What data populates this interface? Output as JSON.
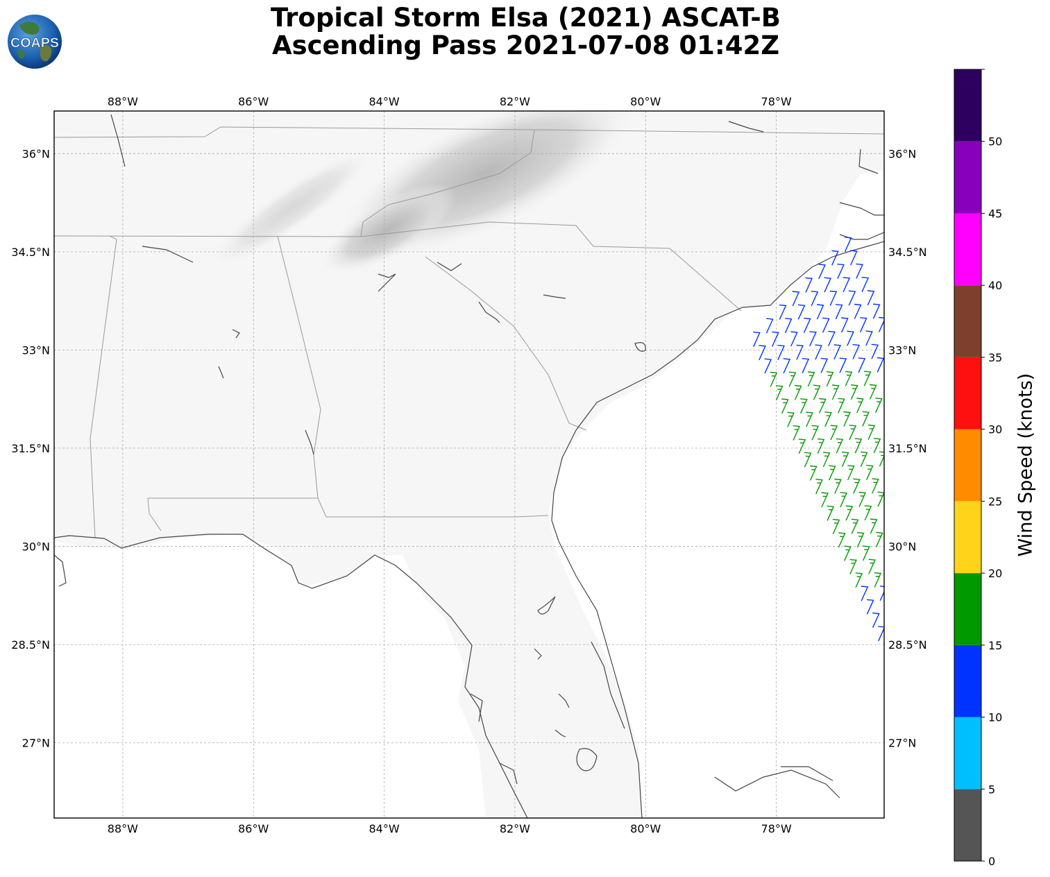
{
  "title": {
    "line1": "Tropical Storm Elsa (2021) ASCAT-B",
    "line2": "Ascending Pass 2021-07-08 01:42Z"
  },
  "logo": {
    "text": "COAPS",
    "icon": "globe-logo"
  },
  "map": {
    "projection": "PlateCarree",
    "lon_range": [
      -89.05,
      -76.35
    ],
    "lat_range": [
      25.85,
      36.65
    ],
    "lon_ticks": [
      {
        "value": -88,
        "label": "88°W"
      },
      {
        "value": -86,
        "label": "86°W"
      },
      {
        "value": -84,
        "label": "84°W"
      },
      {
        "value": -82,
        "label": "82°W"
      },
      {
        "value": -80,
        "label": "80°W"
      },
      {
        "value": -78,
        "label": "78°W"
      }
    ],
    "lat_ticks": [
      {
        "value": 36,
        "label": "36°N"
      },
      {
        "value": 34.5,
        "label": "34.5°N"
      },
      {
        "value": 33,
        "label": "33°N"
      },
      {
        "value": 31.5,
        "label": "31.5°N"
      },
      {
        "value": 30,
        "label": "30°N"
      },
      {
        "value": 28.5,
        "label": "28.5°N"
      },
      {
        "value": 27,
        "label": "27°N"
      }
    ],
    "gridlines": true,
    "coastline_color": "#444444",
    "state_border_color": "#999999",
    "background": "grayscale satellite imagery"
  },
  "colorbar": {
    "label": "Wind Speed (knots)",
    "ticks": [
      "0",
      "5",
      "10",
      "15",
      "20",
      "25",
      "30",
      "35",
      "40",
      "45",
      "50"
    ],
    "bins": [
      {
        "min": 0,
        "max": 5,
        "color": "#555555"
      },
      {
        "min": 5,
        "max": 10,
        "color": "#00bfff"
      },
      {
        "min": 10,
        "max": 15,
        "color": "#0033ff"
      },
      {
        "min": 15,
        "max": 20,
        "color": "#009900"
      },
      {
        "min": 20,
        "max": 25,
        "color": "#ffd319"
      },
      {
        "min": 25,
        "max": 30,
        "color": "#ff8c00"
      },
      {
        "min": 30,
        "max": 35,
        "color": "#ff1010"
      },
      {
        "min": 35,
        "max": 40,
        "color": "#7e3f2c"
      },
      {
        "min": 40,
        "max": 45,
        "color": "#ff00ff"
      },
      {
        "min": 45,
        "max": 50,
        "color": "#8800bb"
      },
      {
        "min": 50,
        "max": 55,
        "color": "#2d0060"
      }
    ]
  },
  "chart_data": {
    "type": "wind barbs",
    "variable": "wind speed (knots)",
    "swath": {
      "inner_edge": [
        [
          -78.35,
          33.05
        ],
        [
          -76.35,
          28.35
        ]
      ],
      "outer_edge": [
        [
          -76.95,
          34.5
        ],
        [
          -76.35,
          33.4
        ]
      ],
      "rows": 24,
      "cols": 8
    },
    "speed_regions": [
      {
        "speed_knots": 12,
        "description": "northern section north of 33.3°N"
      },
      {
        "speed_knots": 17,
        "description": "central band 32.6°N–29.5°N along inner half of swath"
      },
      {
        "speed_knots": 12,
        "description": "southern outer edge and east edge"
      }
    ]
  }
}
